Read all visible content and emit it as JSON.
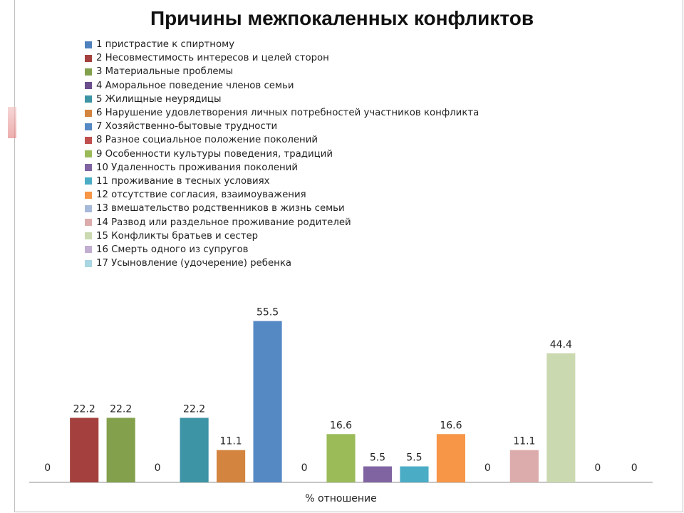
{
  "title": "Причины межпокаленных  конфликтов",
  "chart_data": {
    "type": "bar",
    "title": "Причины межпокаленных  конфликтов",
    "xlabel": "% отношение",
    "ylabel": "",
    "ylim": [
      0,
      60
    ],
    "grid": false,
    "legend_position": "top",
    "series": [
      {
        "name": "1 пристрастие к спиртному",
        "value": 0,
        "label": "0",
        "color": "#4f81bd"
      },
      {
        "name": "2 Несовместимость интересов и целей сторон",
        "value": 22.2,
        "label": "22.2",
        "color": "#a4403d"
      },
      {
        "name": "3 Материальные проблемы",
        "value": 22.2,
        "label": "22.2",
        "color": "#83a04c"
      },
      {
        "name": "4 Аморальное поведение членов семьи",
        "value": 0,
        "label": "0",
        "color": "#6a4f8c"
      },
      {
        "name": "5 Жилищные неурядицы",
        "value": 22.2,
        "label": "22.2",
        "color": "#3d94a5"
      },
      {
        "name": "6 Нарушение удовлетворения личных  потребностей участников конфликта",
        "value": 11.1,
        "label": "11.1",
        "color": "#d3843f"
      },
      {
        "name": "7 Хозяйственно-бытовые трудности",
        "value": 55.5,
        "label": "55.5",
        "color": "#5589c4"
      },
      {
        "name": "8 Разное социальное положение поколений",
        "value": 0,
        "label": "0",
        "color": "#c0504d"
      },
      {
        "name": "9 Особенности культуры поведения, традиций",
        "value": 16.6,
        "label": "16.6",
        "color": "#9bbb59"
      },
      {
        "name": "10 Удаленность проживания поколений",
        "value": 5.5,
        "label": "5.5",
        "color": "#8064a2"
      },
      {
        "name": "11 проживание в тесных условиях",
        "value": 5.5,
        "label": "5.5",
        "color": "#4bacc6"
      },
      {
        "name": "12 отсутствие согласия, взаимоуважения",
        "value": 16.6,
        "label": "16.6",
        "color": "#f79646"
      },
      {
        "name": "13  вмешательство родственников в жизнь семьи",
        "value": 0,
        "label": "0",
        "color": "#a7b9d9"
      },
      {
        "name": "14 Развод или раздельное проживание родителей",
        "value": 11.1,
        "label": "11.1",
        "color": "#dcabab"
      },
      {
        "name": "15 Конфликты братьев и сестер",
        "value": 44.4,
        "label": "44.4",
        "color": "#cbd9b0"
      },
      {
        "name": "16  Смерть одного из супругов",
        "value": 0,
        "label": "0",
        "color": "#c1aed1"
      },
      {
        "name": "17 Усыновление  (удочерение) ребенка",
        "value": 0,
        "label": "0",
        "color": "#a8d6e2"
      }
    ]
  }
}
